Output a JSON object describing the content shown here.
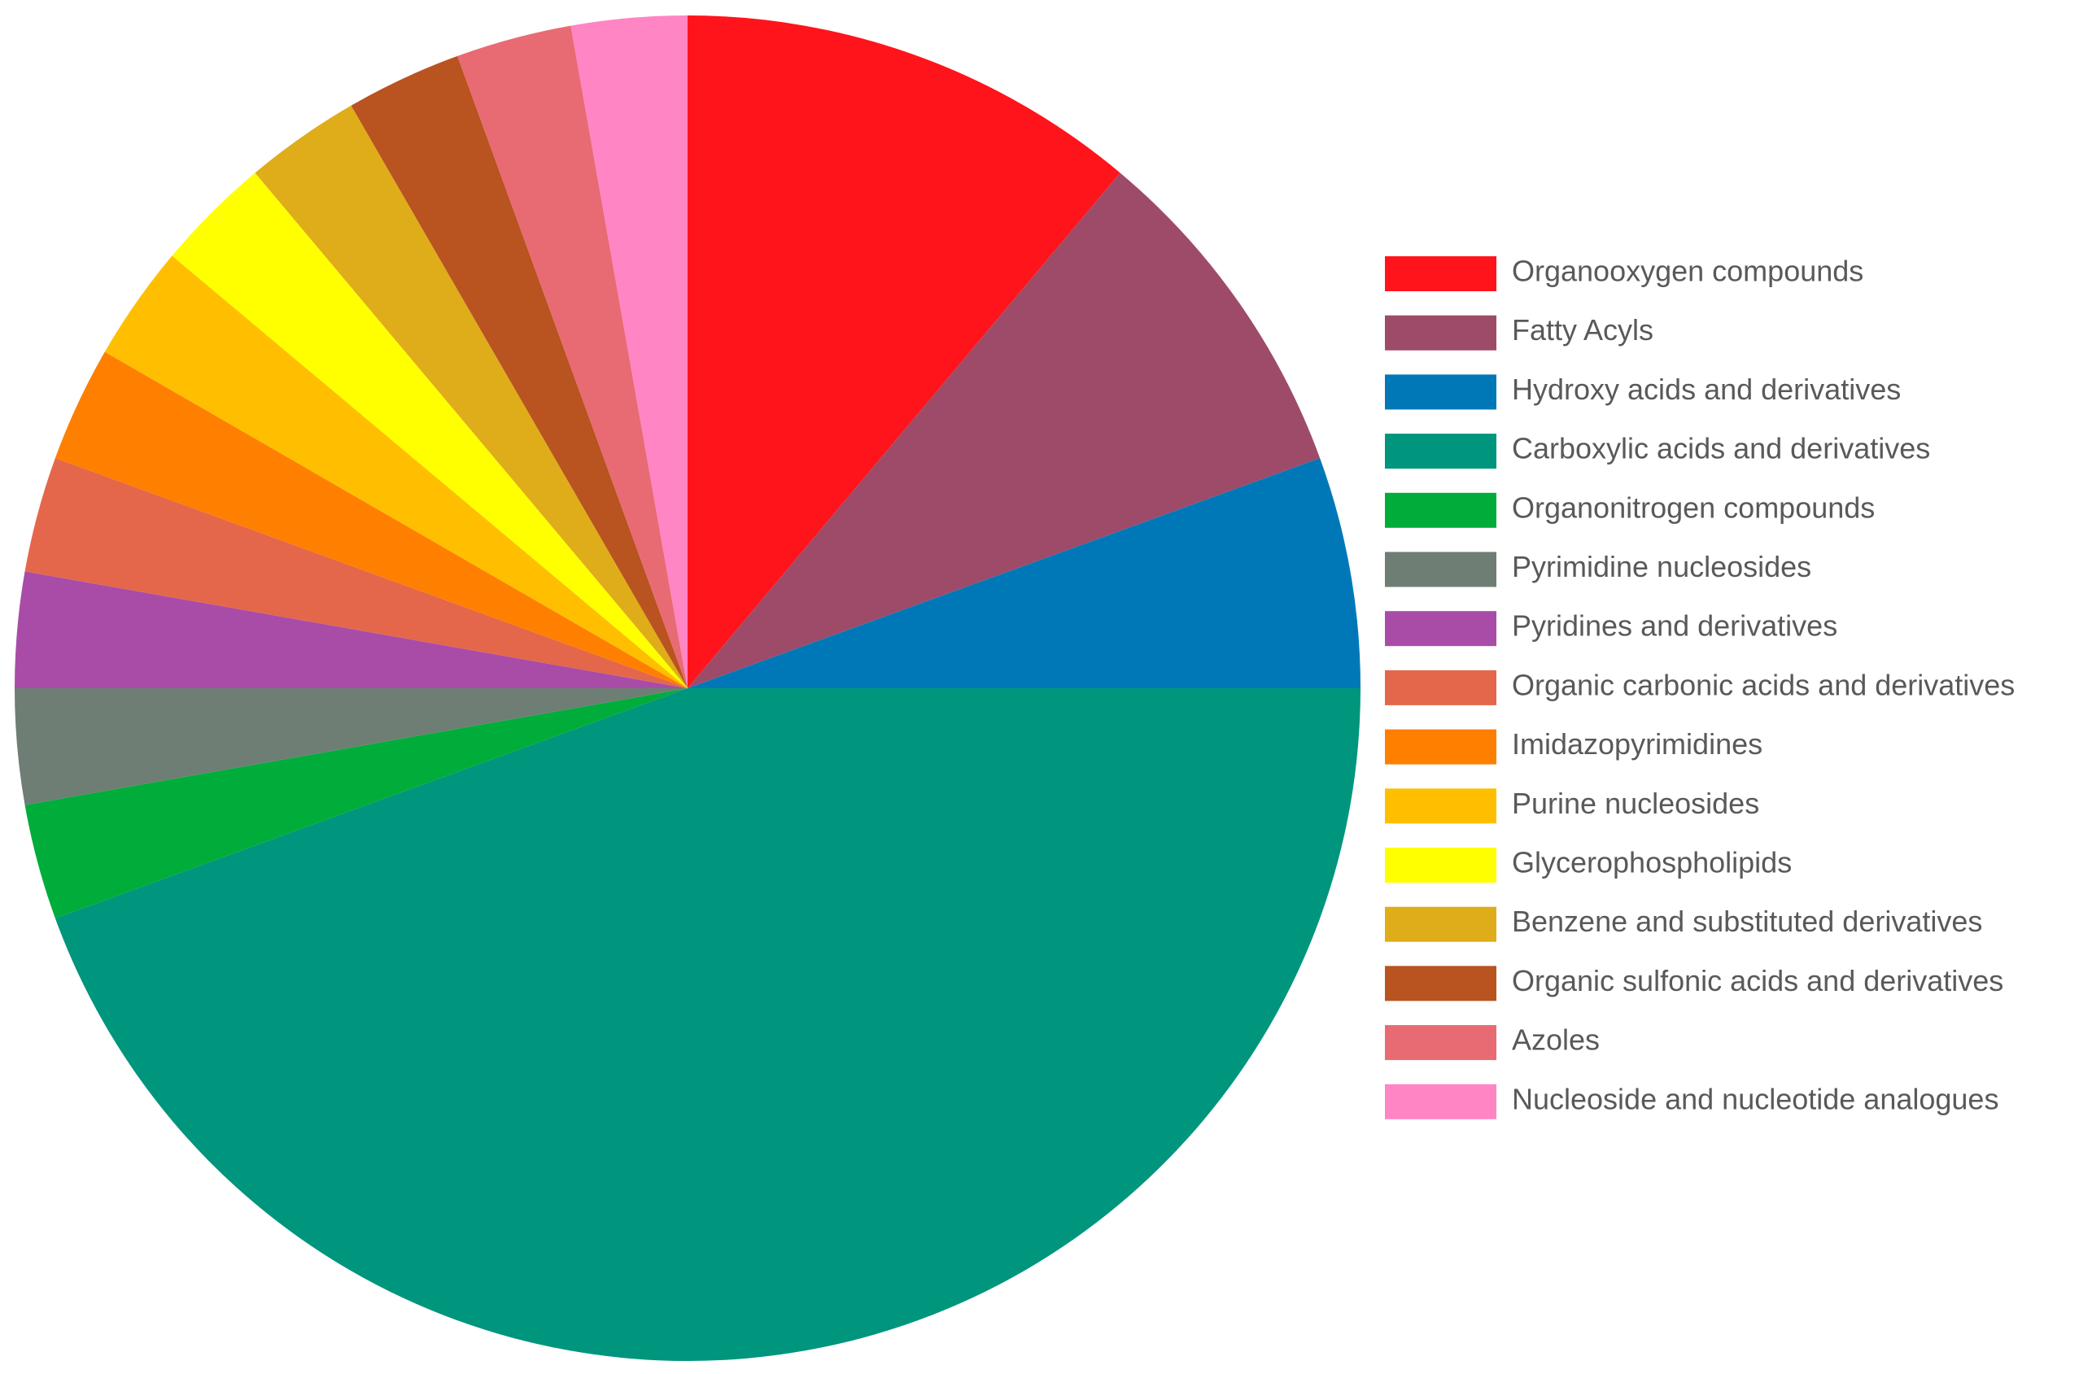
{
  "chart_data": {
    "type": "pie",
    "categories": [
      "Organooxygen compounds",
      "Fatty Acyls",
      "Hydroxy acids and derivatives",
      "Carboxylic acids and derivatives",
      "Organonitrogen compounds",
      "Pyrimidine nucleosides",
      "Pyridines and derivatives",
      "Organic carbonic acids and derivatives",
      "Imidazopyrimidines",
      "Purine nucleosides",
      "Glycerophospholipids",
      "Benzene and substituted derivatives",
      "Organic sulfonic acids and derivatives",
      "Azoles",
      "Nucleoside and nucleotide analogues"
    ],
    "values": [
      4,
      3,
      2,
      16,
      1,
      1,
      1,
      1,
      1,
      1,
      1,
      1,
      1,
      1,
      1
    ],
    "colors": [
      "#ff141c",
      "#9e4b69",
      "#0078b8",
      "#00957d",
      "#00ad3a",
      "#6e7e74",
      "#a94ca8",
      "#e4674b",
      "#ff7f00",
      "#ffbf00",
      "#ffff00",
      "#dfad19",
      "#b9531f",
      "#e86b73",
      "#ff85c5"
    ],
    "legend": "right"
  }
}
